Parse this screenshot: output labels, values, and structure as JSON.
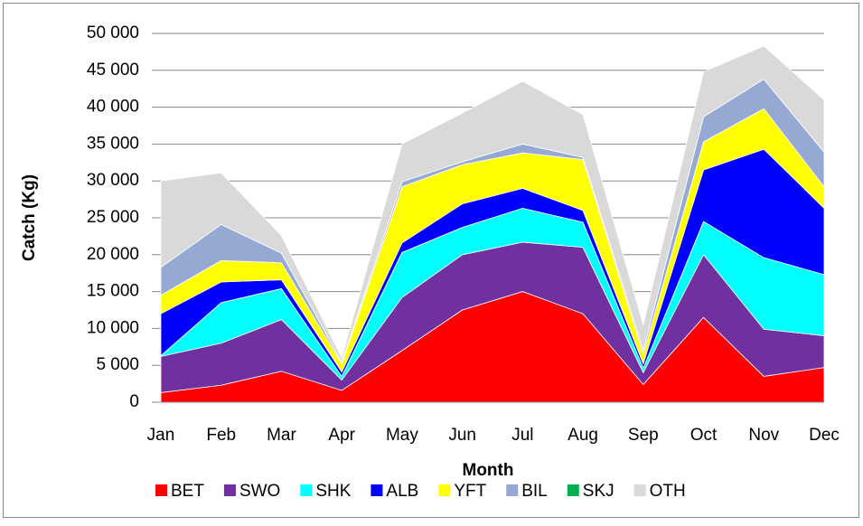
{
  "chart_data": {
    "type": "stacked-area",
    "x_label": "Month",
    "y_label": "Catch (Kg)",
    "categories": [
      "Jan",
      "Feb",
      "Mar",
      "Apr",
      "May",
      "Jun",
      "Jul",
      "Aug",
      "Sep",
      "Oct",
      "Nov",
      "Dec"
    ],
    "series": [
      {
        "name": "BET",
        "color": "#ff0000",
        "values": [
          1300,
          2300,
          4200,
          1600,
          7000,
          12500,
          15000,
          12000,
          2400,
          11500,
          3500,
          4700
        ]
      },
      {
        "name": "SWO",
        "color": "#7030a0",
        "values": [
          4900,
          5700,
          7000,
          1400,
          7200,
          7500,
          6700,
          9000,
          1600,
          8500,
          6400,
          4300
        ]
      },
      {
        "name": "SHK",
        "color": "#00ffff",
        "values": [
          100,
          5500,
          4200,
          500,
          6100,
          3700,
          4600,
          3400,
          600,
          4500,
          9700,
          8300
        ]
      },
      {
        "name": "ALB",
        "color": "#0000ff",
        "values": [
          5700,
          2800,
          1200,
          600,
          1300,
          3200,
          2700,
          1600,
          600,
          7000,
          14700,
          9000
        ]
      },
      {
        "name": "YFT",
        "color": "#ffff00",
        "values": [
          2500,
          2900,
          2300,
          1100,
          7600,
          5300,
          4800,
          6900,
          1300,
          3800,
          5500,
          2900
        ]
      },
      {
        "name": "BIL",
        "color": "#95a9d3",
        "values": [
          3800,
          4900,
          1300,
          200,
          700,
          400,
          1200,
          300,
          500,
          3400,
          4000,
          4700
        ]
      },
      {
        "name": "SKJ",
        "color": "#00b050",
        "values": [
          0,
          0,
          0,
          0,
          0,
          0,
          0,
          0,
          0,
          0,
          0,
          0
        ]
      },
      {
        "name": "OTH",
        "color": "#d9d9d9",
        "values": [
          11700,
          7000,
          2400,
          600,
          5100,
          6600,
          8500,
          5800,
          3500,
          6100,
          4500,
          7100
        ]
      }
    ],
    "ylim": [
      0,
      50000
    ],
    "yticks": [
      0,
      {
        "value": 5000,
        "label": "5 000"
      },
      {
        "value": 10000,
        "label": "10 000"
      },
      {
        "value": 15000,
        "label": "15 000"
      },
      {
        "value": 20000,
        "label": "20 000"
      },
      {
        "value": 25000,
        "label": "25 000"
      },
      {
        "value": 30000,
        "label": "30 000"
      },
      {
        "value": 35000,
        "label": "35 000"
      },
      {
        "value": 40000,
        "label": "40 000"
      },
      {
        "value": 45000,
        "label": "45 000"
      },
      {
        "value": 50000,
        "label": "50 000"
      }
    ],
    "grid": true,
    "legend": "bottom"
  }
}
